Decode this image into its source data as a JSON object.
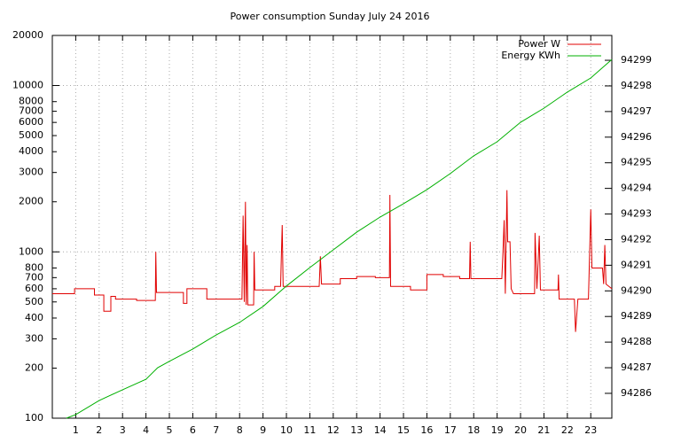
{
  "chart_data": {
    "type": "line",
    "title": "Power consumption Sunday July 24 2016",
    "xlim": [
      0,
      23.9
    ],
    "xticks": [
      1,
      2,
      3,
      4,
      5,
      6,
      7,
      8,
      9,
      10,
      11,
      12,
      13,
      14,
      15,
      16,
      17,
      18,
      19,
      20,
      21,
      22,
      23
    ],
    "ylim": [
      100,
      20000
    ],
    "log_y": true,
    "yticks": [
      100,
      200,
      300,
      400,
      500,
      600,
      700,
      800,
      1000,
      2000,
      3000,
      4000,
      5000,
      6000,
      7000,
      8000,
      10000,
      20000
    ],
    "y2lim": [
      94285.03,
      94299.97
    ],
    "y2ticks": [
      94286,
      94287,
      94288,
      94289,
      94290,
      94291,
      94292,
      94293,
      94294,
      94295,
      94296,
      94297,
      94298,
      94299
    ],
    "grid": true,
    "legend": "top-right",
    "series": [
      {
        "name": "Power W",
        "color": "#e00000",
        "x": [
          0,
          0.95,
          0.95,
          1.8,
          1.8,
          2.2,
          2.2,
          2.5,
          2.5,
          2.7,
          2.7,
          3.6,
          3.6,
          4.4,
          4.42,
          4.45,
          5.6,
          5.6,
          5.75,
          5.75,
          6.6,
          6.6,
          8.1,
          8.15,
          8.2,
          8.25,
          8.28,
          8.32,
          8.35,
          8.6,
          8.62,
          8.65,
          9.5,
          9.5,
          9.75,
          9.78,
          9.82,
          9.86,
          11.4,
          11.45,
          11.5,
          12.3,
          12.3,
          13,
          13,
          13.8,
          13.8,
          14.4,
          14.42,
          14.45,
          15.3,
          15.3,
          16,
          16,
          16.7,
          16.7,
          17.4,
          17.4,
          17.82,
          17.85,
          17.88,
          19.2,
          19.25,
          19.3,
          19.35,
          19.42,
          19.45,
          19.55,
          19.6,
          19.7,
          20.6,
          20.62,
          20.7,
          20.8,
          20.85,
          21.6,
          21.62,
          21.65,
          22.3,
          22.35,
          22.45,
          22.9,
          23,
          23.05,
          23.5,
          23.55,
          23.6,
          23.65,
          23.9
        ],
        "values": [
          560,
          560,
          600,
          600,
          550,
          550,
          440,
          440,
          540,
          540,
          520,
          520,
          510,
          510,
          1000,
          570,
          570,
          490,
          490,
          600,
          600,
          520,
          520,
          1650,
          500,
          2000,
          480,
          1100,
          480,
          480,
          1000,
          590,
          590,
          620,
          620,
          900,
          1450,
          620,
          620,
          940,
          640,
          640,
          690,
          690,
          710,
          710,
          700,
          700,
          2200,
          620,
          620,
          590,
          590,
          730,
          730,
          710,
          710,
          690,
          690,
          1150,
          690,
          690,
          1000,
          1550,
          560,
          2350,
          1150,
          1150,
          600,
          560,
          560,
          1300,
          600,
          1250,
          590,
          590,
          730,
          520,
          520,
          330,
          520,
          520,
          1800,
          800,
          800,
          640,
          1100,
          640,
          600
        ]
      },
      {
        "name": "Energy KWh",
        "color": "#00b000",
        "axis": "y2",
        "x": [
          0.6,
          1,
          2,
          3,
          4,
          4.5,
          5,
          6,
          7,
          8,
          9,
          10,
          11,
          12,
          13,
          14,
          15,
          16,
          17,
          18,
          19,
          20,
          21,
          22,
          23,
          23.9
        ],
        "values": [
          94285.03,
          94285.17,
          94285.72,
          94286.14,
          94286.55,
          94287.0,
          94287.25,
          94287.73,
          94288.28,
          94288.77,
          94289.39,
          94290.19,
          94290.91,
          94291.6,
          94292.29,
          94292.88,
          94293.4,
          94293.95,
          94294.58,
          94295.27,
          94295.82,
          94296.58,
          94297.13,
          94297.76,
          94298.31,
          94299.03
        ]
      }
    ]
  }
}
